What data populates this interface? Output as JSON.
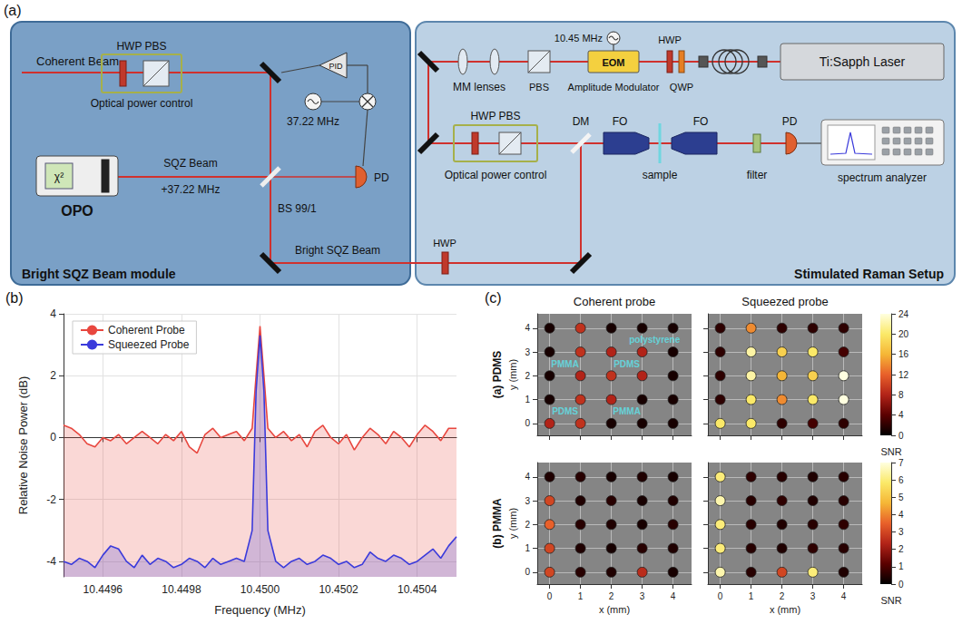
{
  "diagram": {
    "panel_label": "(a)",
    "texts": {
      "module_left": "Bright SQZ Beam module",
      "module_right": "Stimulated Raman Setup",
      "coherent": "Coherent Beam",
      "hwp_pbs_left": "HWP PBS",
      "opc_left": "Optical power control",
      "pid": "PID",
      "osc_left": "37.22 MHz",
      "pd_left": "PD",
      "opo": "OPO",
      "chi": "χ²",
      "sqz_beam": "SQZ Beam",
      "sqz_mod": "+37.22 MHz",
      "bs": "BS 99/1",
      "bright": "Bright SQZ Beam",
      "hwp_link": "HWP",
      "osc_right": "10.45 MHz",
      "mm": "MM lenses",
      "pbs": "PBS",
      "eom": "EOM",
      "am": "Amplitude Modulator",
      "hwp_r": "HWP",
      "qwp": "QWP",
      "laser": "Ti:Sapph Laser",
      "hwp_pbs_right": "HWP PBS",
      "opc_right": "Optical power control",
      "dm": "DM",
      "fo1": "FO",
      "fo2": "FO",
      "sample": "sample",
      "filter": "filter",
      "pd_right": "PD",
      "sa": "spectrum analyzer"
    }
  },
  "chart_data": [
    {
      "type": "area",
      "panel_label": "(b)",
      "x_label": "Frequency (MHz)",
      "y_label": "Relative Noise Power (dB)",
      "x": [
        10.4495,
        10.44952,
        10.44954,
        10.44956,
        10.44958,
        10.4496,
        10.44962,
        10.44964,
        10.44966,
        10.44968,
        10.4497,
        10.44972,
        10.44974,
        10.44976,
        10.44978,
        10.4498,
        10.44982,
        10.44984,
        10.44986,
        10.44988,
        10.4499,
        10.44992,
        10.44994,
        10.44996,
        10.44998,
        10.44999,
        10.45,
        10.45001,
        10.45002,
        10.45004,
        10.45006,
        10.45008,
        10.4501,
        10.45012,
        10.45014,
        10.45016,
        10.45018,
        10.4502,
        10.45022,
        10.45024,
        10.45026,
        10.45028,
        10.4503,
        10.45032,
        10.45034,
        10.45036,
        10.45038,
        10.4504,
        10.45042,
        10.45044,
        10.45046,
        10.45048,
        10.4505
      ],
      "series": [
        {
          "name": "Coherent Probe",
          "color": "#e8473f",
          "values": [
            0.4,
            0.3,
            0.1,
            -0.2,
            -0.3,
            0.0,
            -0.1,
            0.1,
            -0.2,
            0.0,
            0.2,
            0.0,
            -0.2,
            0.1,
            -0.1,
            0.2,
            -0.3,
            -0.5,
            0.1,
            0.3,
            0.0,
            0.1,
            0.2,
            -0.1,
            0.3,
            2.0,
            3.6,
            2.0,
            0.3,
            0.0,
            0.2,
            -0.1,
            0.1,
            -0.3,
            0.2,
            0.4,
            0.0,
            -0.2,
            0.1,
            -0.4,
            0.0,
            0.3,
            0.1,
            -0.2,
            0.2,
            0.0,
            -0.3,
            0.1,
            0.4,
            0.2,
            -0.1,
            0.3,
            0.3
          ]
        },
        {
          "name": "Squeezed Probe",
          "color": "#3b3bdb",
          "values": [
            -4.0,
            -4.1,
            -3.9,
            -4.0,
            -4.2,
            -3.8,
            -3.5,
            -3.6,
            -4.0,
            -4.2,
            -3.8,
            -4.1,
            -3.9,
            -4.0,
            -4.2,
            -4.1,
            -3.9,
            -4.0,
            -4.2,
            -3.9,
            -4.1,
            -4.0,
            -3.9,
            -4.0,
            -3.0,
            1.5,
            3.3,
            1.5,
            -3.0,
            -4.0,
            -4.2,
            -4.0,
            -3.9,
            -4.1,
            -4.0,
            -3.8,
            -3.9,
            -4.1,
            -4.0,
            -4.2,
            -4.1,
            -3.7,
            -3.9,
            -4.0,
            -3.8,
            -3.9,
            -4.1,
            -4.0,
            -3.8,
            -3.6,
            -3.9,
            -3.5,
            -3.2
          ]
        }
      ],
      "xlim": [
        10.4495,
        10.4505
      ],
      "xticks": [
        10.4496,
        10.4498,
        {
          "value": 10.45,
          "label": "10.4500"
        },
        10.4502,
        10.4504
      ],
      "ylim": [
        -4.5,
        4
      ],
      "yticks": [
        -4,
        -2,
        0,
        2,
        4
      ],
      "grid": true,
      "legend": "upper left"
    },
    {
      "type": "scatter",
      "panel_label": "(c)",
      "columns": [
        "Coherent probe",
        "Squeezed probe"
      ],
      "x_label": "x (mm)",
      "y_label": "y (mm)",
      "xlim": [
        -0.4,
        4.6
      ],
      "xticks": [
        0,
        1,
        2,
        3,
        4
      ],
      "ylim": [
        -0.5,
        4.6
      ],
      "yticks": [
        0,
        1,
        2,
        3,
        4
      ],
      "grid": true,
      "rows": [
        {
          "label": "(a) PDMS",
          "colorbar": {
            "label": "SNR",
            "range": [
              0,
              24
            ],
            "ticks": [
              0,
              4,
              8,
              12,
              16,
              20,
              24
            ]
          },
          "panels": [
            {
              "tick_labels": "y",
              "x": [
                0,
                1,
                2,
                3,
                4,
                0,
                1,
                2,
                3,
                4,
                0,
                1,
                2,
                3,
                4,
                0,
                1,
                2,
                3,
                4,
                0,
                1,
                2,
                3,
                4
              ],
              "y": [
                4,
                4,
                4,
                4,
                4,
                3,
                3,
                3,
                3,
                3,
                2,
                2,
                2,
                2,
                2,
                1,
                1,
                1,
                1,
                1,
                0,
                0,
                0,
                0,
                0
              ],
              "snr": [
                1,
                9,
                1,
                1,
                1,
                1,
                9,
                8,
                8,
                1,
                1,
                8,
                9,
                8,
                1,
                1,
                9,
                8,
                1,
                1,
                8,
                9,
                1,
                1,
                1
              ],
              "annotations": [
                {
                  "text": "PMMA",
                  "x": 0.5,
                  "y": 2.5
                },
                {
                  "text": "PDMS",
                  "x": 2.5,
                  "y": 2.5
                },
                {
                  "text": "PDMS",
                  "x": 0.5,
                  "y": 0.5
                },
                {
                  "text": "PMMA",
                  "x": 2.5,
                  "y": 0.5
                },
                {
                  "text": "polystyrene",
                  "x": 3.4,
                  "y": 3.5
                }
              ]
            },
            {
              "tick_labels": false,
              "x": [
                0,
                1,
                2,
                3,
                4,
                0,
                1,
                2,
                3,
                4,
                0,
                1,
                2,
                3,
                4,
                0,
                1,
                2,
                3,
                4,
                0,
                1,
                2,
                3,
                4
              ],
              "y": [
                4,
                4,
                4,
                4,
                4,
                3,
                3,
                3,
                3,
                3,
                2,
                2,
                2,
                2,
                2,
                1,
                1,
                1,
                1,
                1,
                0,
                0,
                0,
                0,
                0
              ],
              "snr": [
                2,
                14,
                2,
                2,
                2,
                2,
                22,
                18,
                20,
                3,
                2,
                22,
                16,
                18,
                24,
                2,
                20,
                14,
                20,
                24,
                20,
                20,
                2,
                3,
                2
              ]
            }
          ]
        },
        {
          "label": "(b) PMMA",
          "colorbar": {
            "label": "SNR",
            "range": [
              0,
              7
            ],
            "ticks": [
              0,
              1,
              2,
              3,
              4,
              5,
              6,
              7
            ]
          },
          "panels": [
            {
              "tick_labels": true,
              "x": [
                0,
                1,
                2,
                3,
                4,
                0,
                1,
                2,
                3,
                4,
                0,
                1,
                2,
                3,
                4,
                0,
                1,
                2,
                3,
                4,
                0,
                1,
                2,
                3,
                4
              ],
              "y": [
                4,
                4,
                4,
                4,
                4,
                3,
                3,
                3,
                3,
                3,
                2,
                2,
                2,
                2,
                2,
                1,
                1,
                1,
                1,
                1,
                0,
                0,
                0,
                0,
                0
              ],
              "snr": [
                0.4,
                0.5,
                0.3,
                0.4,
                0.3,
                3,
                0.4,
                0.5,
                0.3,
                0.4,
                3.5,
                0.5,
                0.4,
                0.3,
                0.5,
                3,
                0.4,
                0.3,
                0.5,
                0.4,
                3,
                0.5,
                0.4,
                2.5,
                0.3
              ]
            },
            {
              "tick_labels": "x",
              "x": [
                0,
                1,
                2,
                3,
                4,
                0,
                1,
                2,
                3,
                4,
                0,
                1,
                2,
                3,
                4,
                0,
                1,
                2,
                3,
                4,
                0,
                1,
                2,
                3,
                4
              ],
              "y": [
                4,
                4,
                4,
                4,
                4,
                3,
                3,
                3,
                3,
                3,
                2,
                2,
                2,
                2,
                2,
                1,
                1,
                1,
                1,
                1,
                0,
                0,
                0,
                0,
                0
              ],
              "snr": [
                6,
                0.6,
                0.5,
                0.4,
                0.5,
                6.5,
                0.5,
                0.6,
                0.4,
                0.5,
                6,
                0.5,
                0.4,
                0.5,
                0.6,
                6,
                0.5,
                0.4,
                0.6,
                0.5,
                6.5,
                0.5,
                3,
                6,
                0.4
              ]
            }
          ]
        }
      ]
    }
  ]
}
